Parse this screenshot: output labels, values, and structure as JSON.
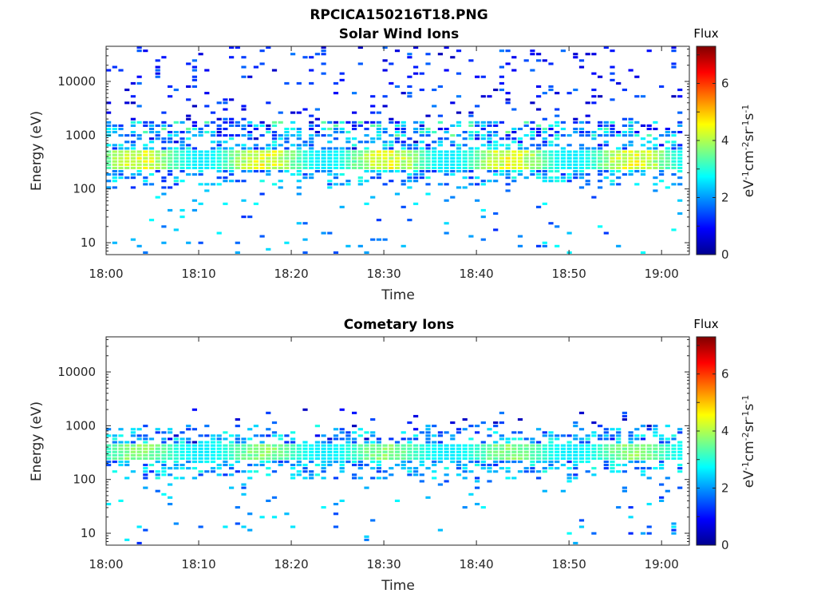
{
  "figure_title": "RPCICA150216T18.PNG",
  "chart_data": [
    {
      "type": "heatmap",
      "title": "Solar Wind Ions",
      "xlabel": "Time",
      "ylabel": "Energy (eV)",
      "x_ticks": [
        "18:00",
        "18:10",
        "18:20",
        "18:30",
        "18:40",
        "18:50",
        "19:00"
      ],
      "x_range": [
        "18:00",
        "19:03"
      ],
      "y_scale": "log",
      "y_ticks": [
        "10",
        "100",
        "1000",
        "10000"
      ],
      "y_range": [
        6,
        45000
      ],
      "colorbar": {
        "title": "Flux",
        "label": "eV-1cm-2sr-1s-1",
        "range": [
          0,
          7.3
        ],
        "ticks": [
          "0",
          "2",
          "4",
          "6"
        ],
        "colormap": "jet"
      },
      "description_values": {
        "main_band_energy_eV": [
          230,
          500
        ],
        "main_band_flux_max": 4.8,
        "secondary_band_energy_eV": [
          900,
          1500
        ]
      }
    },
    {
      "type": "heatmap",
      "title": "Cometary Ions",
      "xlabel": "Time",
      "ylabel": "Energy (eV)",
      "x_ticks": [
        "18:00",
        "18:10",
        "18:20",
        "18:30",
        "18:40",
        "18:50",
        "19:00"
      ],
      "x_range": [
        "18:00",
        "19:03"
      ],
      "y_scale": "log",
      "y_ticks": [
        "10",
        "100",
        "1000",
        "10000"
      ],
      "y_range": [
        6,
        45000
      ],
      "colorbar": {
        "title": "Flux",
        "label": "eV-1cm-2sr-1s-1",
        "range": [
          0,
          7.3
        ],
        "ticks": [
          "0",
          "2",
          "4",
          "6"
        ],
        "colormap": "jet"
      },
      "description_values": {
        "main_band_energy_eV": [
          230,
          450
        ],
        "main_band_flux_max": 4.0,
        "upper_limit_energy_eV": 2000
      }
    }
  ]
}
